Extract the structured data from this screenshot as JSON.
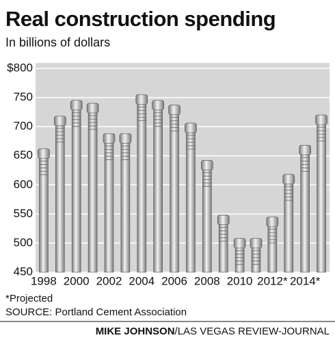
{
  "chart_data": {
    "type": "bar",
    "title": "Real construction spending",
    "subtitle": "In billions of dollars",
    "categories": [
      "1998",
      null,
      "2000",
      null,
      "2002",
      null,
      "2004",
      null,
      "2006",
      null,
      "2008",
      null,
      "2010",
      null,
      "2012*",
      null,
      "2014*",
      null
    ],
    "values": [
      662,
      718,
      745,
      740,
      688,
      688,
      755,
      745,
      737,
      706,
      642,
      548,
      508,
      508,
      545,
      618,
      668,
      720
    ],
    "color": "#9a9a9a",
    "ylim": [
      450,
      800
    ],
    "yticks": [
      450,
      500,
      550,
      600,
      650,
      700,
      750,
      {
        "value": 800,
        "label": "$800"
      }
    ],
    "grid": true,
    "footnote": "*Projected",
    "source": "SOURCE: Portland Cement Association",
    "credit_name": "MIKE JOHNSON",
    "credit_org": "/LAS VEGAS REVIEW-JOURNAL"
  }
}
